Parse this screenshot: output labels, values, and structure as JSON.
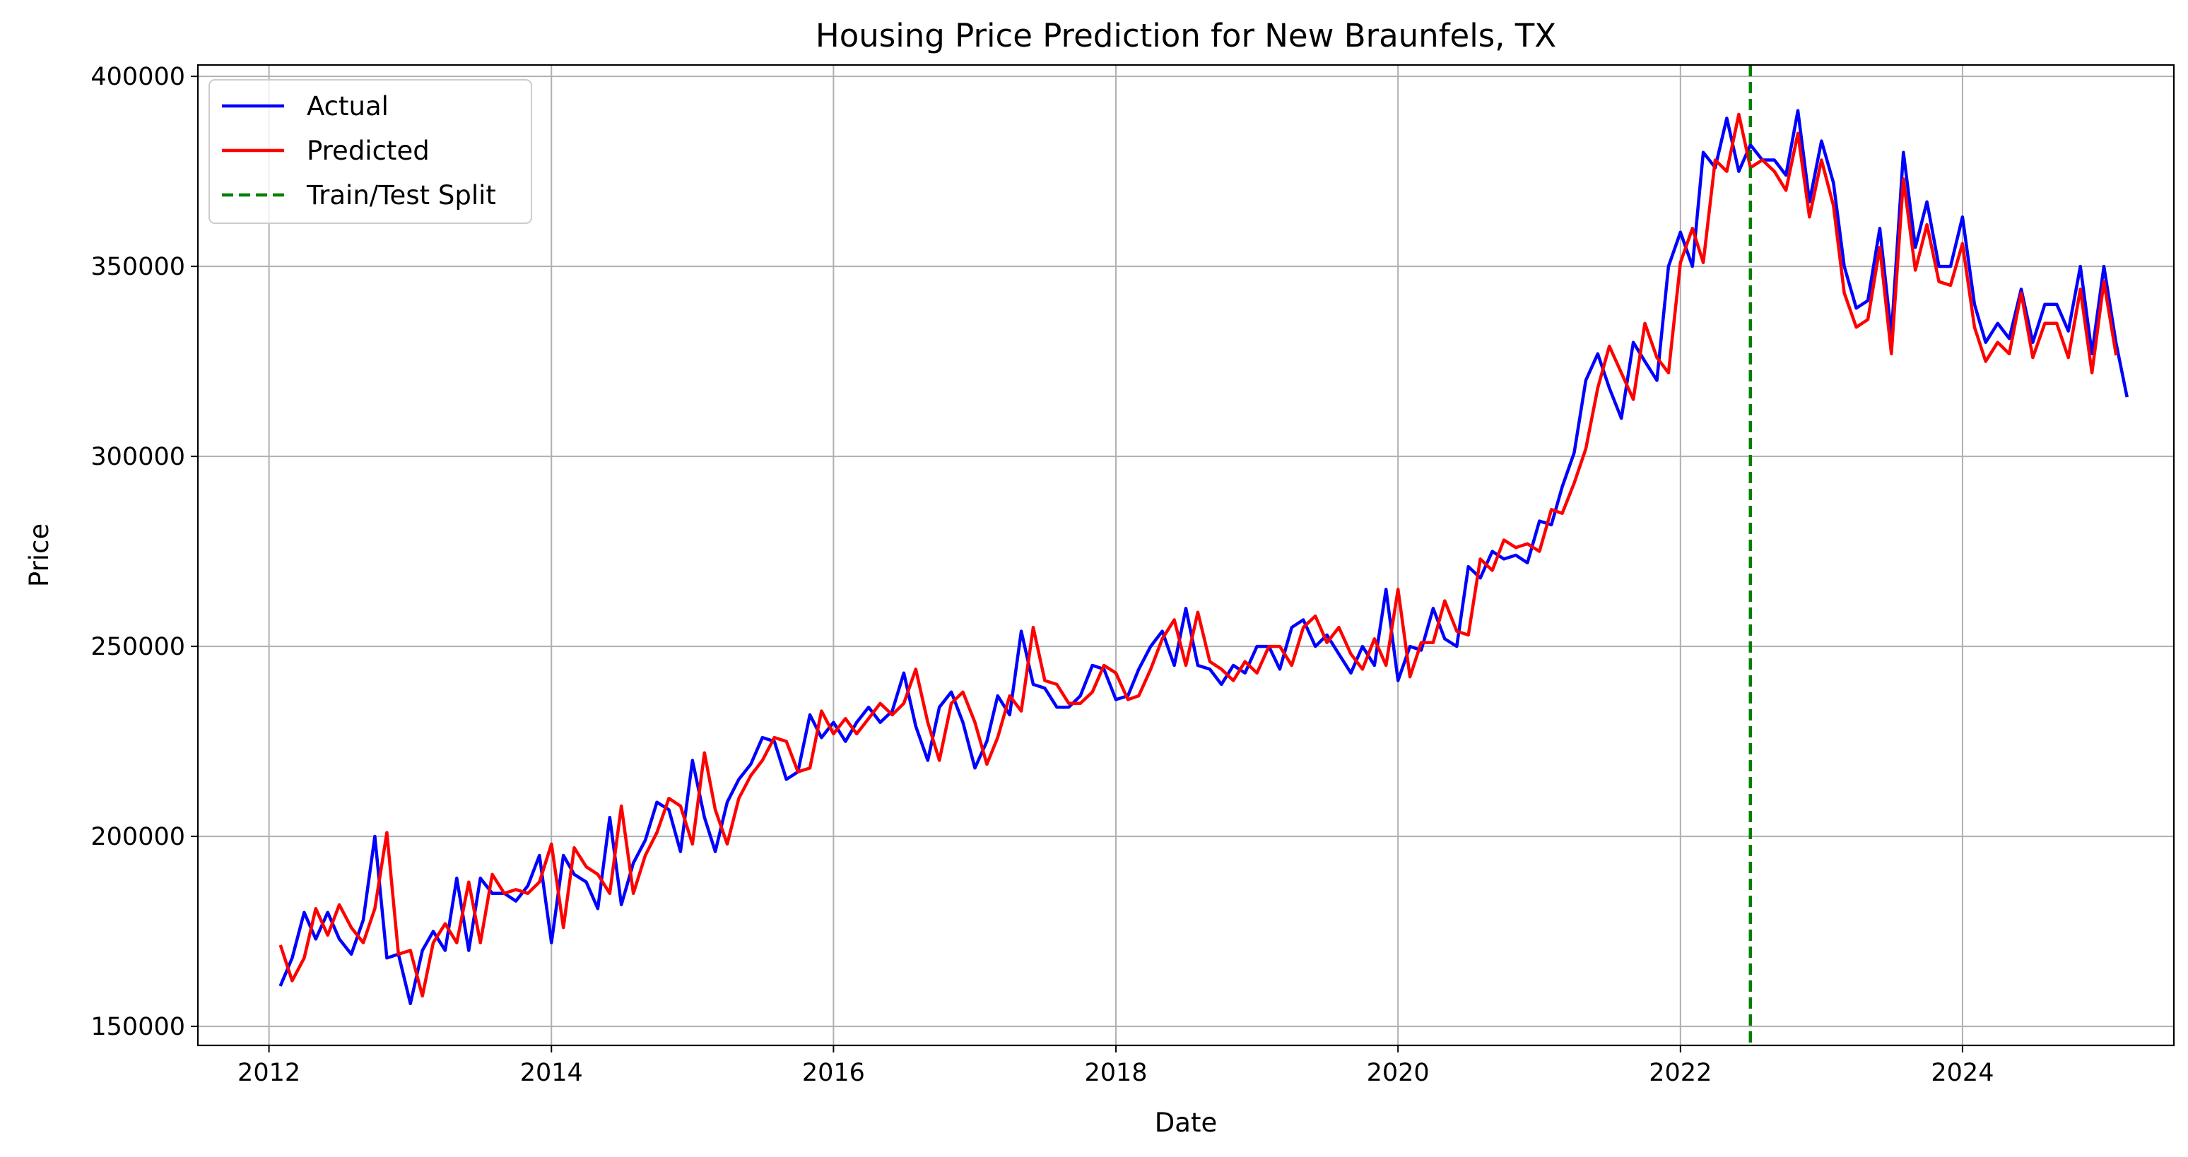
{
  "chart_data": {
    "type": "line",
    "title": "Housing Price Prediction for New Braunfels, TX",
    "xlabel": "Date",
    "ylabel": "Price",
    "x_axis": "date",
    "xlim": [
      "2011-07-01",
      "2025-07-01"
    ],
    "ylim": [
      145000,
      403000
    ],
    "xticks": [
      "2012-01-01",
      "2014-01-01",
      "2016-01-01",
      "2018-01-01",
      "2020-01-01",
      "2022-01-01",
      "2024-01-01"
    ],
    "xtick_labels": [
      "2012",
      "2014",
      "2016",
      "2018",
      "2020",
      "2022",
      "2024"
    ],
    "yticks": [
      150000,
      200000,
      250000,
      300000,
      350000,
      400000
    ],
    "ytick_labels": [
      "150000",
      "200000",
      "250000",
      "300000",
      "350000",
      "400000"
    ],
    "grid": true,
    "legend_position": "top-left",
    "x_start": "2012-02-01",
    "x_frequency": "monthly",
    "series": [
      {
        "name": "Actual",
        "color": "#0000ff",
        "style": "solid",
        "values": [
          161000,
          168000,
          180000,
          173000,
          180000,
          173000,
          169000,
          178000,
          200000,
          168000,
          169000,
          156000,
          170000,
          175000,
          170000,
          189000,
          170000,
          189000,
          185000,
          185000,
          183000,
          187000,
          195000,
          172000,
          195000,
          190000,
          188000,
          181000,
          205000,
          182000,
          193000,
          199000,
          209000,
          207000,
          196000,
          220000,
          205000,
          196000,
          209000,
          215000,
          219000,
          226000,
          225000,
          215000,
          217000,
          232000,
          226000,
          230000,
          225000,
          230000,
          234000,
          230000,
          233000,
          243000,
          229000,
          220000,
          234000,
          238000,
          230000,
          218000,
          225000,
          237000,
          232000,
          254000,
          240000,
          239000,
          234000,
          234000,
          237000,
          245000,
          244000,
          236000,
          237000,
          244000,
          250000,
          254000,
          245000,
          260000,
          245000,
          244000,
          240000,
          245000,
          243000,
          250000,
          250000,
          244000,
          255000,
          257000,
          250000,
          253000,
          248000,
          243000,
          250000,
          245000,
          265000,
          241000,
          250000,
          249000,
          260000,
          252000,
          250000,
          271000,
          268000,
          275000,
          273000,
          274000,
          272000,
          283000,
          282000,
          292000,
          301000,
          320000,
          327000,
          318000,
          310000,
          330000,
          325000,
          320000,
          350000,
          359000,
          350000,
          380000,
          376000,
          389000,
          375000,
          382000,
          378000,
          378000,
          374000,
          391000,
          367000,
          383000,
          372000,
          350000,
          339000,
          341000,
          360000,
          332000,
          380000,
          355000,
          367000,
          350000,
          350000,
          363000,
          340000,
          330000,
          335000,
          331000,
          344000,
          330000,
          340000,
          340000,
          333000,
          350000,
          327000,
          350000,
          330000,
          316000
        ]
      },
      {
        "name": "Predicted",
        "color": "#ff0000",
        "style": "solid",
        "values": [
          171000,
          162000,
          168000,
          181000,
          174000,
          182000,
          176000,
          172000,
          181000,
          201000,
          169000,
          170000,
          158000,
          172000,
          177000,
          172000,
          188000,
          172000,
          190000,
          185000,
          186000,
          185000,
          188000,
          198000,
          176000,
          197000,
          192000,
          190000,
          185000,
          208000,
          185000,
          195000,
          201000,
          210000,
          208000,
          198000,
          222000,
          207000,
          198000,
          210000,
          216000,
          220000,
          226000,
          225000,
          217000,
          218000,
          233000,
          227000,
          231000,
          227000,
          231000,
          235000,
          232000,
          235000,
          244000,
          230000,
          220000,
          235000,
          238000,
          230000,
          219000,
          226000,
          237000,
          233000,
          255000,
          241000,
          240000,
          235000,
          235000,
          238000,
          245000,
          243000,
          236000,
          237000,
          244000,
          252000,
          257000,
          245000,
          259000,
          246000,
          244000,
          241000,
          246000,
          243000,
          250000,
          250000,
          245000,
          255000,
          258000,
          251000,
          255000,
          248000,
          244000,
          252000,
          245000,
          265000,
          242000,
          251000,
          251000,
          262000,
          254000,
          253000,
          273000,
          270000,
          278000,
          276000,
          277000,
          275000,
          286000,
          285000,
          293000,
          302000,
          318000,
          329000,
          322000,
          315000,
          335000,
          326000,
          322000,
          351000,
          360000,
          351000,
          378000,
          375000,
          390000,
          376000,
          378000,
          375000,
          370000,
          385000,
          363000,
          378000,
          366000,
          343000,
          334000,
          336000,
          355000,
          327000,
          373000,
          349000,
          361000,
          346000,
          345000,
          356000,
          334000,
          325000,
          330000,
          327000,
          343000,
          326000,
          335000,
          335000,
          326000,
          344000,
          322000,
          346000,
          327000
        ]
      },
      {
        "name": "Train/Test Split",
        "color": "#008000",
        "style": "dashed",
        "x_value": "2022-07-01"
      }
    ]
  }
}
